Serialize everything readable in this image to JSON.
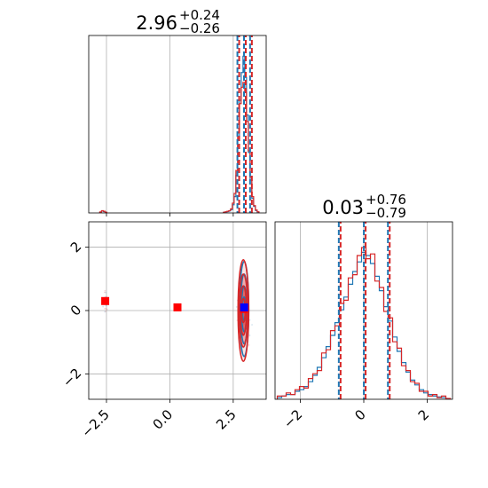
{
  "chart_data": [
    {
      "type": "step",
      "panel": "marginal-x",
      "title": {
        "main": "2.96",
        "plus": "+0.24",
        "minus": "−0.26"
      },
      "xlim": [
        -3.2,
        3.8
      ],
      "quantile_lines": [
        2.7,
        2.96,
        3.2
      ],
      "series": [
        {
          "color": "#1f77b4",
          "bin_width": 0.07,
          "bins": [
            {
              "x": -2.73,
              "y": 0.005
            },
            {
              "x": -2.66,
              "y": 0.012
            },
            {
              "x": -2.59,
              "y": 0.008
            },
            {
              "x": -2.52,
              "y": 0.005
            },
            {
              "x": 2.15,
              "y": 0.004
            },
            {
              "x": 2.22,
              "y": 0.006
            },
            {
              "x": 2.29,
              "y": 0.008
            },
            {
              "x": 2.36,
              "y": 0.012
            },
            {
              "x": 2.43,
              "y": 0.02
            },
            {
              "x": 2.5,
              "y": 0.05
            },
            {
              "x": 2.57,
              "y": 0.1
            },
            {
              "x": 2.64,
              "y": 0.23
            },
            {
              "x": 2.71,
              "y": 0.45
            },
            {
              "x": 2.78,
              "y": 0.69
            },
            {
              "x": 2.85,
              "y": 0.86
            },
            {
              "x": 2.92,
              "y": 0.96
            },
            {
              "x": 2.99,
              "y": 0.83
            },
            {
              "x": 3.06,
              "y": 0.6
            },
            {
              "x": 3.13,
              "y": 0.37
            },
            {
              "x": 3.2,
              "y": 0.2
            },
            {
              "x": 3.27,
              "y": 0.09
            },
            {
              "x": 3.34,
              "y": 0.04
            },
            {
              "x": 3.41,
              "y": 0.015
            },
            {
              "x": 3.48,
              "y": 0.006
            }
          ]
        },
        {
          "color": "#d62728",
          "bin_width": 0.07,
          "bins": [
            {
              "x": -2.73,
              "y": 0.006
            },
            {
              "x": -2.66,
              "y": 0.014
            },
            {
              "x": -2.59,
              "y": 0.01
            },
            {
              "x": -2.52,
              "y": 0.004
            },
            {
              "x": 2.15,
              "y": 0.004
            },
            {
              "x": 2.22,
              "y": 0.007
            },
            {
              "x": 2.29,
              "y": 0.01
            },
            {
              "x": 2.36,
              "y": 0.014
            },
            {
              "x": 2.43,
              "y": 0.025
            },
            {
              "x": 2.5,
              "y": 0.06
            },
            {
              "x": 2.57,
              "y": 0.12
            },
            {
              "x": 2.64,
              "y": 0.26
            },
            {
              "x": 2.71,
              "y": 0.49
            },
            {
              "x": 2.78,
              "y": 0.67
            },
            {
              "x": 2.85,
              "y": 0.77
            },
            {
              "x": 2.92,
              "y": 0.8
            },
            {
              "x": 2.99,
              "y": 0.74
            },
            {
              "x": 3.06,
              "y": 0.56
            },
            {
              "x": 3.13,
              "y": 0.38
            },
            {
              "x": 3.2,
              "y": 0.22
            },
            {
              "x": 3.27,
              "y": 0.1
            },
            {
              "x": 3.34,
              "y": 0.045
            },
            {
              "x": 3.41,
              "y": 0.018
            },
            {
              "x": 3.48,
              "y": 0.007
            }
          ]
        }
      ]
    },
    {
      "type": "step",
      "panel": "marginal-y",
      "title": {
        "main": "0.03",
        "plus": "+0.76",
        "minus": "−0.79"
      },
      "xlim": [
        -2.8,
        2.8
      ],
      "xticks": [
        -2,
        0,
        2
      ],
      "xtick_labels": [
        "−2",
        "0",
        "2"
      ],
      "quantile_lines": [
        -0.76,
        0.03,
        0.79
      ],
      "series": [
        {
          "color": "#1f77b4",
          "bin_width": 0.14,
          "bins": [
            {
              "x": -2.66,
              "y": 0.01
            },
            {
              "x": -2.52,
              "y": 0.02
            },
            {
              "x": -2.38,
              "y": 0.03
            },
            {
              "x": -2.24,
              "y": 0.03
            },
            {
              "x": -2.1,
              "y": 0.05
            },
            {
              "x": -1.96,
              "y": 0.06
            },
            {
              "x": -1.82,
              "y": 0.08
            },
            {
              "x": -1.68,
              "y": 0.11
            },
            {
              "x": -1.54,
              "y": 0.15
            },
            {
              "x": -1.4,
              "y": 0.2
            },
            {
              "x": -1.26,
              "y": 0.26
            },
            {
              "x": -1.12,
              "y": 0.33
            },
            {
              "x": -0.98,
              "y": 0.4
            },
            {
              "x": -0.84,
              "y": 0.48
            },
            {
              "x": -0.7,
              "y": 0.56
            },
            {
              "x": -0.56,
              "y": 0.64
            },
            {
              "x": -0.42,
              "y": 0.72
            },
            {
              "x": -0.28,
              "y": 0.8
            },
            {
              "x": -0.14,
              "y": 0.86
            },
            {
              "x": 0.0,
              "y": 0.92
            },
            {
              "x": 0.14,
              "y": 0.9
            },
            {
              "x": 0.28,
              "y": 0.85
            },
            {
              "x": 0.42,
              "y": 0.77
            },
            {
              "x": 0.56,
              "y": 0.68
            },
            {
              "x": 0.7,
              "y": 0.58
            },
            {
              "x": 0.84,
              "y": 0.49
            },
            {
              "x": 0.98,
              "y": 0.39
            },
            {
              "x": 1.12,
              "y": 0.3
            },
            {
              "x": 1.26,
              "y": 0.23
            },
            {
              "x": 1.4,
              "y": 0.17
            },
            {
              "x": 1.54,
              "y": 0.12
            },
            {
              "x": 1.68,
              "y": 0.09
            },
            {
              "x": 1.82,
              "y": 0.06
            },
            {
              "x": 1.96,
              "y": 0.04
            },
            {
              "x": 2.1,
              "y": 0.03
            },
            {
              "x": 2.24,
              "y": 0.02
            },
            {
              "x": 2.38,
              "y": 0.015
            },
            {
              "x": 2.52,
              "y": 0.01
            },
            {
              "x": 2.66,
              "y": 0.005
            }
          ]
        },
        {
          "color": "#d62728",
          "bin_width": 0.14,
          "bins": [
            {
              "x": -2.66,
              "y": 0.02
            },
            {
              "x": -2.52,
              "y": 0.02
            },
            {
              "x": -2.38,
              "y": 0.04
            },
            {
              "x": -2.24,
              "y": 0.03
            },
            {
              "x": -2.1,
              "y": 0.06
            },
            {
              "x": -1.96,
              "y": 0.08
            },
            {
              "x": -1.82,
              "y": 0.07
            },
            {
              "x": -1.68,
              "y": 0.13
            },
            {
              "x": -1.54,
              "y": 0.16
            },
            {
              "x": -1.4,
              "y": 0.18
            },
            {
              "x": -1.26,
              "y": 0.29
            },
            {
              "x": -1.12,
              "y": 0.31
            },
            {
              "x": -0.98,
              "y": 0.43
            },
            {
              "x": -0.84,
              "y": 0.46
            },
            {
              "x": -0.7,
              "y": 0.6
            },
            {
              "x": -0.56,
              "y": 0.62
            },
            {
              "x": -0.42,
              "y": 0.76
            },
            {
              "x": -0.28,
              "y": 0.78
            },
            {
              "x": -0.14,
              "y": 0.9
            },
            {
              "x": 0.0,
              "y": 0.95
            },
            {
              "x": 0.14,
              "y": 0.88
            },
            {
              "x": 0.28,
              "y": 0.91
            },
            {
              "x": 0.42,
              "y": 0.74
            },
            {
              "x": 0.56,
              "y": 0.7
            },
            {
              "x": 0.7,
              "y": 0.55
            },
            {
              "x": 0.84,
              "y": 0.51
            },
            {
              "x": 0.98,
              "y": 0.36
            },
            {
              "x": 1.12,
              "y": 0.32
            },
            {
              "x": 1.26,
              "y": 0.21
            },
            {
              "x": 1.4,
              "y": 0.18
            },
            {
              "x": 1.54,
              "y": 0.11
            },
            {
              "x": 1.68,
              "y": 0.1
            },
            {
              "x": 1.82,
              "y": 0.05
            },
            {
              "x": 1.96,
              "y": 0.05
            },
            {
              "x": 2.1,
              "y": 0.02
            },
            {
              "x": 2.24,
              "y": 0.03
            },
            {
              "x": 2.38,
              "y": 0.01
            },
            {
              "x": 2.52,
              "y": 0.02
            },
            {
              "x": 2.66,
              "y": 0.005
            }
          ]
        }
      ]
    },
    {
      "type": "contour-scatter",
      "panel": "joint",
      "xlim": [
        -3.2,
        3.8
      ],
      "ylim": [
        -2.8,
        2.8
      ],
      "xticks": [
        -2.5,
        0.0,
        2.5
      ],
      "xtick_labels": [
        "−2.5",
        "0.0",
        "2.5"
      ],
      "yticks": [
        -2,
        0,
        2
      ],
      "ytick_labels": [
        "−2",
        "0",
        "2"
      ],
      "series": [
        {
          "color": "#1f77b4",
          "center": [
            2.93,
            0.05
          ],
          "contour_sigmas": [
            [
              0.06,
              0.38
            ],
            [
              0.1,
              0.72
            ],
            [
              0.14,
              1.1
            ],
            [
              0.18,
              1.5
            ]
          ],
          "marker": {
            "x": 2.93,
            "y": 0.1,
            "color": "#0000ff"
          }
        },
        {
          "color": "#d62728",
          "center": [
            2.9,
            0.0
          ],
          "contour_sigmas": [
            [
              0.07,
              0.38
            ],
            [
              0.12,
              0.78
            ],
            [
              0.17,
              1.15
            ],
            [
              0.21,
              1.6
            ]
          ],
          "fill_levels": [
            0.12,
            0.3,
            0.5
          ],
          "markers": [
            {
              "x": 2.92,
              "y": 0.05,
              "color": "#ff0000"
            },
            {
              "x": -2.55,
              "y": 0.3,
              "color": "#ff0000"
            },
            {
              "x": 0.3,
              "y": 0.1,
              "color": "#ff0000"
            }
          ]
        }
      ],
      "outlier_clusters": [
        {
          "x": -2.55,
          "y": 0.2,
          "spread": [
            0.12,
            0.7
          ],
          "n": 22
        },
        {
          "x": 2.9,
          "y": 0.0,
          "spread": [
            0.35,
            1.3
          ],
          "n": 90
        }
      ]
    }
  ]
}
